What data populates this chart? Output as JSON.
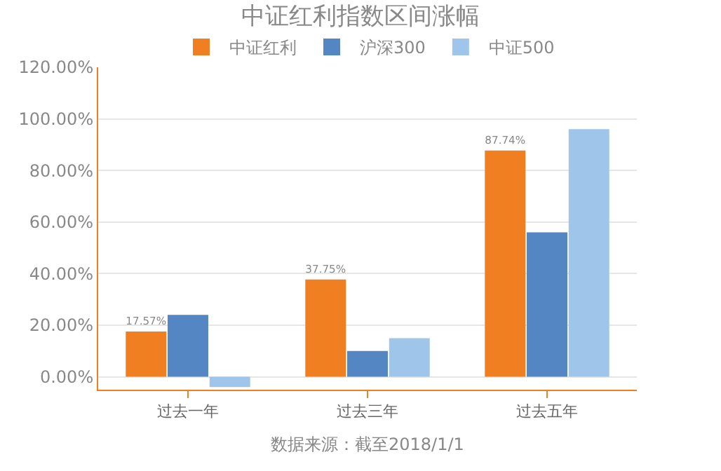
{
  "chart_data": {
    "type": "bar",
    "title": "中证红利指数区间涨幅",
    "categories": [
      "过去一年",
      "过去三年",
      "过去五年"
    ],
    "series": [
      {
        "name": "中证红利",
        "color": "#f07f22",
        "values": [
          17.57,
          37.75,
          87.74
        ],
        "value_labels": [
          "17.57%",
          "37.75%",
          "87.74%"
        ]
      },
      {
        "name": "沪深300",
        "color": "#5486c4",
        "values": [
          24,
          10,
          56
        ]
      },
      {
        "name": "中证500",
        "color": "#9fc6ea",
        "values": [
          -4,
          15,
          96
        ]
      }
    ],
    "ylim": [
      -5,
      120
    ],
    "yticks": [
      {
        "value": 0,
        "label": "0.00%"
      },
      {
        "value": 20,
        "label": "20.00%"
      },
      {
        "value": 40,
        "label": "40.00%"
      },
      {
        "value": 60,
        "label": "60.00%"
      },
      {
        "value": 80,
        "label": "80.00%"
      },
      {
        "value": 100,
        "label": "100.00%"
      },
      {
        "value": 120,
        "label": "120.00%"
      }
    ],
    "grid": "y",
    "legend": "top",
    "annotations": [
      "数据来源：截至2018/1/1"
    ]
  }
}
